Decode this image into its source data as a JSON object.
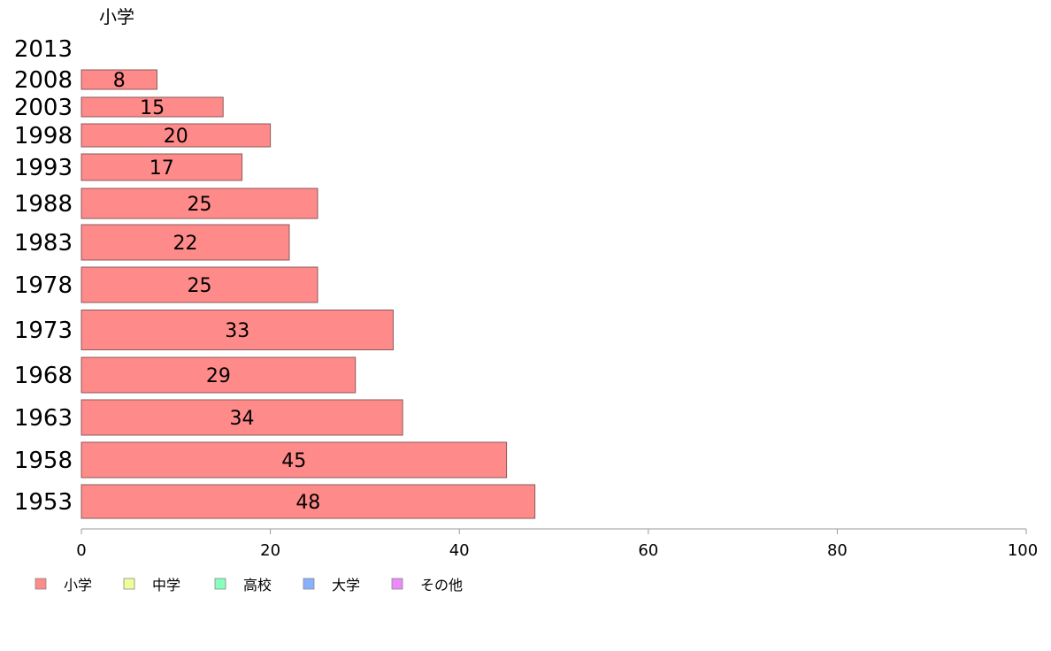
{
  "chart_data": {
    "type": "bar",
    "orientation": "horizontal",
    "title": "小学",
    "categories": [
      "2013",
      "2008",
      "2003",
      "1998",
      "1993",
      "1988",
      "1983",
      "1978",
      "1973",
      "1968",
      "1963",
      "1958",
      "1953"
    ],
    "series": [
      {
        "name": "小学",
        "color": "#ff8a8a",
        "values": [
          null,
          8,
          15,
          20,
          17,
          25,
          22,
          25,
          33,
          29,
          34,
          45,
          48
        ]
      }
    ],
    "xlim": [
      0,
      100
    ],
    "xticks": [
      0,
      20,
      40,
      60,
      80,
      100
    ],
    "grid": false,
    "legend": {
      "placement": "bottom-left",
      "items": [
        {
          "label": "小学",
          "color": "#ff8a8a"
        },
        {
          "label": "中学",
          "color": "#eeff99"
        },
        {
          "label": "高校",
          "color": "#88ffbb"
        },
        {
          "label": "大学",
          "color": "#88b0ff"
        },
        {
          "label": "その他",
          "color": "#ee88ff"
        }
      ]
    }
  }
}
